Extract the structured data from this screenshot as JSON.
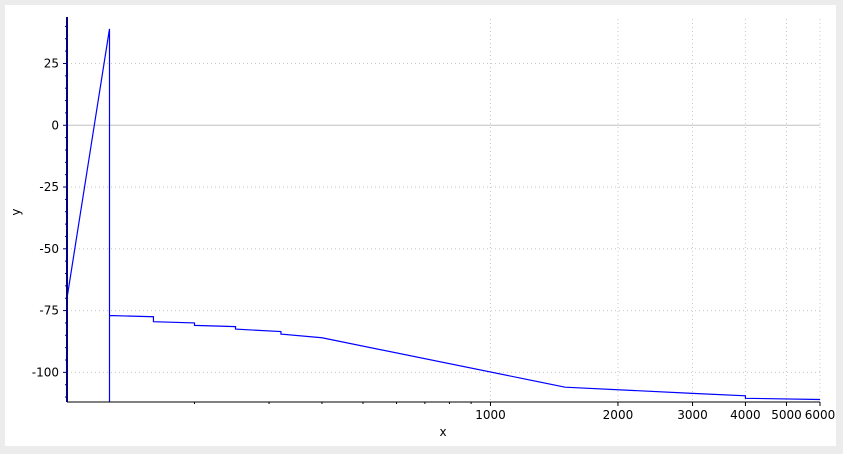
{
  "chart_data": {
    "type": "line",
    "xlabel": "x",
    "ylabel": "y",
    "x_scale": "log",
    "grid": true,
    "y_ticks": [
      25,
      0,
      -25,
      -50,
      -75,
      -100
    ],
    "x_ticks": [
      1000,
      2000,
      3000,
      4000,
      5000,
      6000
    ],
    "x_tick_labels": [
      "1000",
      "2000",
      "3000",
      "4000",
      "5000",
      "6000"
    ],
    "ylim": [
      -112,
      43
    ],
    "xlim": [
      100,
      6000
    ],
    "series_color": "#0000ff",
    "series": [
      {
        "x": [
          100,
          126,
          126,
          126,
          160,
          160,
          200,
          200,
          250,
          250,
          320,
          320,
          400,
          400,
          1500,
          1500,
          3000,
          3000,
          4000,
          4000,
          6000
        ],
        "y": [
          -70,
          39,
          -114,
          -77,
          -77.5,
          -79.5,
          -80,
          -81,
          -81.5,
          -82.5,
          -83.5,
          -84.5,
          -86,
          -86,
          -106,
          -106,
          -108.5,
          -108.5,
          -109.5,
          -110.5,
          -111
        ]
      }
    ]
  }
}
